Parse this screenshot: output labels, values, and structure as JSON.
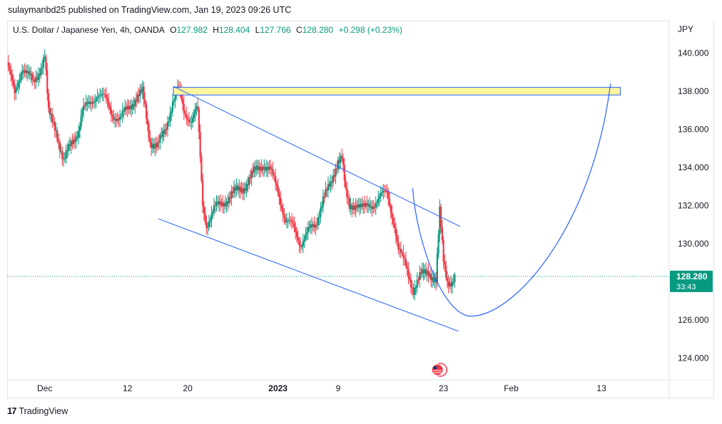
{
  "publisher_line": "sulaymanbd25 published on TradingView.com, Jan 19, 2023 09:26 UTC",
  "legend": {
    "symbol": "U.S. Dollar / Japanese Yen, 4h, OANDA",
    "o_label": "O",
    "o_value": "127.982",
    "h_label": "H",
    "h_value": "128.404",
    "l_label": "L",
    "l_value": "127.766",
    "c_label": "C",
    "c_value": "128.280",
    "change": "+0.298 (+0.23%)"
  },
  "footer": {
    "brand": "TradingView",
    "logo_text": "17"
  },
  "colors": {
    "up": "#089981",
    "down": "#f23645",
    "line": "#2962ff",
    "zone_fill": "#fff59d",
    "price_line": "#089981"
  },
  "chart_data": {
    "type": "candlestick",
    "currency_label": "JPY",
    "price_axis": {
      "ticks": [
        140.0,
        138.0,
        136.0,
        134.0,
        132.0,
        130.0,
        126.0,
        124.0
      ],
      "tick_labels": [
        "140.000",
        "138.000",
        "136.000",
        "134.000",
        "132.000",
        "130.000",
        "126.000",
        "124.000"
      ],
      "range": [
        122.85,
        141.7
      ]
    },
    "time_axis": {
      "labels": [
        {
          "text": "Dec",
          "day": 0,
          "bold": false
        },
        {
          "text": "12",
          "day": 11,
          "bold": false
        },
        {
          "text": "20",
          "day": 19,
          "bold": false
        },
        {
          "text": "2023",
          "day": 31,
          "bold": true
        },
        {
          "text": "9",
          "day": 39,
          "bold": false
        },
        {
          "text": "23",
          "day": 53,
          "bold": false
        },
        {
          "text": "Feb",
          "day": 62,
          "bold": false
        },
        {
          "text": "13",
          "day": 74,
          "bold": false
        }
      ],
      "range": [
        -5,
        83
      ]
    },
    "last_price": {
      "value": 128.28,
      "label": "128.280",
      "countdown": "33:43"
    },
    "price_path": [
      [
        -5.0,
        139.5
      ],
      [
        -4.0,
        137.8
      ],
      [
        -3.0,
        139.3
      ],
      [
        -1.5,
        138.4
      ],
      [
        -0.5,
        139.3
      ],
      [
        0.0,
        139.9
      ],
      [
        0.5,
        136.8
      ],
      [
        1.5,
        136.0
      ],
      [
        2.5,
        134.3
      ],
      [
        3.5,
        135.2
      ],
      [
        4.5,
        136.0
      ],
      [
        5.0,
        137.0
      ],
      [
        6.0,
        137.3
      ],
      [
        7.0,
        137.9
      ],
      [
        8.0,
        137.6
      ],
      [
        9.0,
        136.8
      ],
      [
        10.0,
        136.5
      ],
      [
        11.0,
        137.1
      ],
      [
        12.0,
        137.6
      ],
      [
        13.0,
        137.9
      ],
      [
        14.0,
        135.4
      ],
      [
        15.0,
        135.1
      ],
      [
        16.0,
        135.9
      ],
      [
        17.0,
        137.5
      ],
      [
        17.8,
        138.1
      ],
      [
        18.5,
        136.9
      ],
      [
        19.5,
        136.5
      ],
      [
        20.3,
        137.1
      ],
      [
        21.0,
        132.0
      ],
      [
        21.5,
        131.0
      ],
      [
        22.5,
        131.8
      ],
      [
        23.5,
        132.1
      ],
      [
        25.0,
        132.6
      ],
      [
        26.5,
        133.0
      ],
      [
        28.0,
        133.8
      ],
      [
        29.0,
        134.2
      ],
      [
        30.0,
        133.8
      ],
      [
        31.0,
        132.8
      ],
      [
        32.0,
        131.2
      ],
      [
        33.0,
        130.9
      ],
      [
        34.0,
        130.0
      ],
      [
        35.0,
        130.6
      ],
      [
        36.0,
        131.0
      ],
      [
        37.0,
        132.4
      ],
      [
        38.0,
        133.0
      ],
      [
        39.0,
        134.5
      ],
      [
        39.5,
        134.6
      ],
      [
        40.0,
        132.6
      ],
      [
        40.5,
        131.8
      ],
      [
        41.5,
        132.2
      ],
      [
        42.5,
        131.8
      ],
      [
        43.5,
        132.0
      ],
      [
        44.5,
        132.5
      ],
      [
        45.5,
        132.6
      ],
      [
        46.5,
        131.0
      ],
      [
        47.0,
        129.7
      ],
      [
        48.0,
        128.8
      ],
      [
        49.0,
        127.6
      ],
      [
        50.0,
        128.3
      ],
      [
        51.0,
        128.6
      ],
      [
        52.0,
        128.0
      ],
      [
        52.5,
        131.6
      ],
      [
        53.0,
        129.1
      ],
      [
        53.5,
        128.1
      ],
      [
        54.2,
        128.0
      ],
      [
        54.6,
        128.28
      ]
    ],
    "drawings": {
      "resistance_zone": {
        "price_low": 137.8,
        "price_high": 138.2,
        "day_start": 17.1,
        "day_end": 76.5
      },
      "upper_channel_line": [
        [
          17.1,
          138.25
        ],
        [
          55.2,
          130.9
        ]
      ],
      "lower_channel_line": [
        [
          15.1,
          131.3
        ],
        [
          55.0,
          125.4
        ]
      ],
      "projection_curve": {
        "start": [
          48.9,
          132.9
        ],
        "low": [
          57.0,
          126.2
        ],
        "end": [
          75.2,
          138.4
        ]
      }
    }
  }
}
